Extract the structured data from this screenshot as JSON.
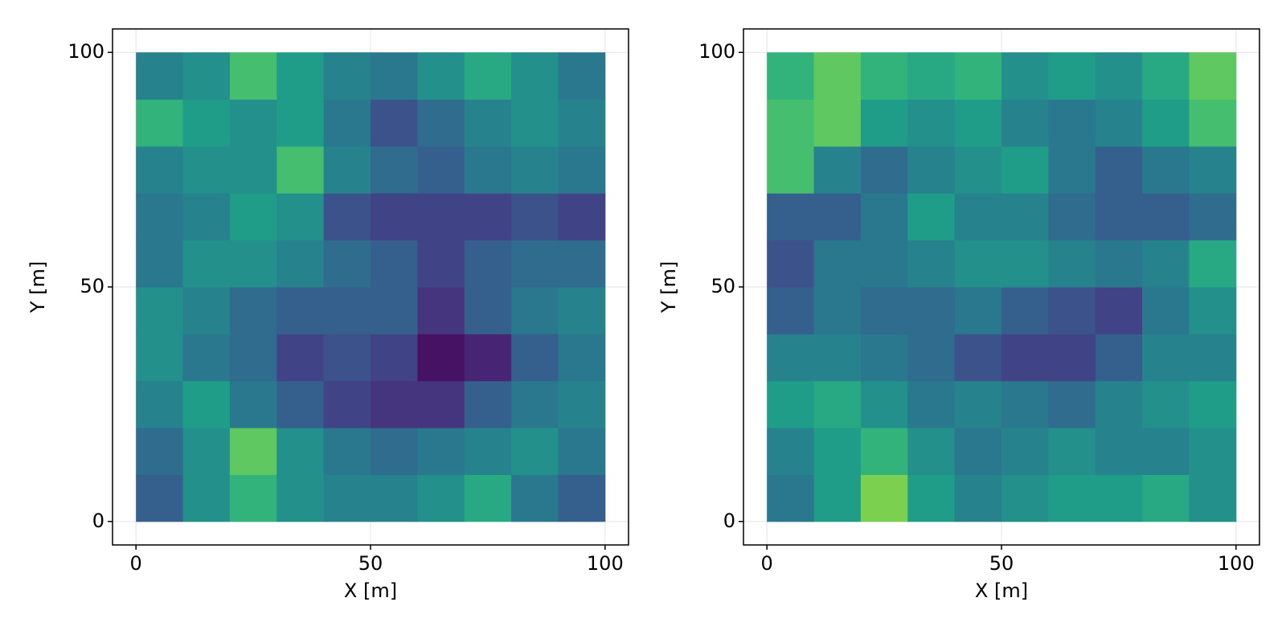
{
  "chart_data": [
    {
      "type": "heatmap",
      "colormap": "viridis",
      "grid": true,
      "xlabel": "X [m]",
      "ylabel": "Y [m]",
      "xlim": [
        -5,
        105
      ],
      "ylim": [
        -5,
        105
      ],
      "xticks": [
        0,
        50,
        100
      ],
      "yticks": [
        0,
        50,
        100
      ],
      "x": [
        5,
        15,
        25,
        35,
        45,
        55,
        65,
        75,
        85,
        95
      ],
      "y": [
        5,
        15,
        25,
        35,
        45,
        55,
        65,
        75,
        85,
        95
      ],
      "z": [
        [
          0.3,
          0.5,
          0.65,
          0.5,
          0.45,
          0.45,
          0.5,
          0.6,
          0.4,
          0.3
        ],
        [
          0.35,
          0.5,
          0.75,
          0.5,
          0.4,
          0.35,
          0.4,
          0.45,
          0.5,
          0.4
        ],
        [
          0.45,
          0.55,
          0.4,
          0.3,
          0.2,
          0.15,
          0.15,
          0.3,
          0.4,
          0.45
        ],
        [
          0.5,
          0.4,
          0.35,
          0.2,
          0.25,
          0.2,
          0.05,
          0.1,
          0.3,
          0.4
        ],
        [
          0.5,
          0.45,
          0.35,
          0.3,
          0.3,
          0.3,
          0.15,
          0.3,
          0.4,
          0.45
        ],
        [
          0.4,
          0.5,
          0.5,
          0.45,
          0.35,
          0.3,
          0.2,
          0.3,
          0.35,
          0.35
        ],
        [
          0.4,
          0.45,
          0.55,
          0.5,
          0.25,
          0.2,
          0.2,
          0.2,
          0.25,
          0.2
        ],
        [
          0.45,
          0.5,
          0.5,
          0.7,
          0.45,
          0.35,
          0.3,
          0.4,
          0.45,
          0.4
        ],
        [
          0.65,
          0.55,
          0.5,
          0.55,
          0.4,
          0.25,
          0.35,
          0.45,
          0.5,
          0.45
        ],
        [
          0.45,
          0.5,
          0.7,
          0.55,
          0.45,
          0.4,
          0.5,
          0.6,
          0.5,
          0.4
        ]
      ]
    },
    {
      "type": "heatmap",
      "colormap": "viridis",
      "grid": true,
      "xlabel": "X [m]",
      "ylabel": "Y [m]",
      "xlim": [
        -5,
        105
      ],
      "ylim": [
        -5,
        105
      ],
      "xticks": [
        0,
        50,
        100
      ],
      "yticks": [
        0,
        50,
        100
      ],
      "x": [
        5,
        15,
        25,
        35,
        45,
        55,
        65,
        75,
        85,
        95
      ],
      "y": [
        5,
        15,
        25,
        35,
        45,
        55,
        65,
        75,
        85,
        95
      ],
      "z": [
        [
          0.4,
          0.55,
          0.8,
          0.55,
          0.45,
          0.5,
          0.55,
          0.55,
          0.6,
          0.5
        ],
        [
          0.45,
          0.55,
          0.65,
          0.5,
          0.4,
          0.45,
          0.5,
          0.45,
          0.45,
          0.5
        ],
        [
          0.55,
          0.6,
          0.5,
          0.4,
          0.45,
          0.4,
          0.35,
          0.45,
          0.5,
          0.55
        ],
        [
          0.45,
          0.45,
          0.4,
          0.35,
          0.25,
          0.2,
          0.2,
          0.3,
          0.45,
          0.45
        ],
        [
          0.3,
          0.4,
          0.35,
          0.35,
          0.4,
          0.3,
          0.25,
          0.2,
          0.4,
          0.5
        ],
        [
          0.25,
          0.4,
          0.4,
          0.45,
          0.5,
          0.5,
          0.45,
          0.4,
          0.45,
          0.6
        ],
        [
          0.3,
          0.3,
          0.4,
          0.55,
          0.45,
          0.45,
          0.35,
          0.3,
          0.3,
          0.35
        ],
        [
          0.7,
          0.45,
          0.35,
          0.45,
          0.5,
          0.55,
          0.4,
          0.3,
          0.4,
          0.45
        ],
        [
          0.7,
          0.75,
          0.55,
          0.5,
          0.55,
          0.45,
          0.4,
          0.45,
          0.55,
          0.7
        ],
        [
          0.65,
          0.75,
          0.65,
          0.6,
          0.65,
          0.5,
          0.55,
          0.5,
          0.6,
          0.75
        ]
      ]
    }
  ]
}
